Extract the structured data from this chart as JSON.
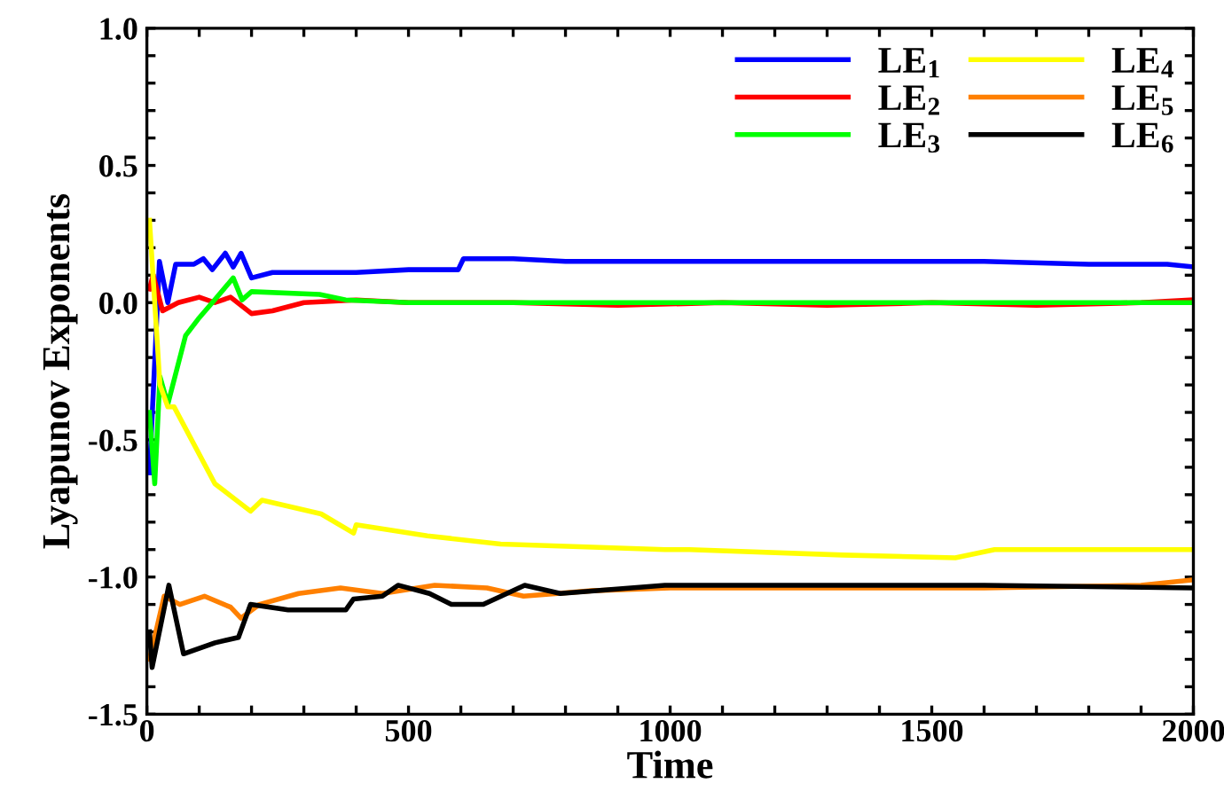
{
  "chart_data": {
    "type": "line",
    "xlabel": "Time",
    "ylabel": "Lyapunov Exponents",
    "xlim": [
      0,
      2000
    ],
    "ylim": [
      -1.5,
      1.0
    ],
    "xticks": [
      0,
      {
        "value": 100,
        "label": null
      },
      {
        "value": 200,
        "label": null
      },
      {
        "value": 300,
        "label": null
      },
      {
        "value": 400,
        "label": null
      },
      500,
      {
        "value": 600,
        "label": null
      },
      {
        "value": 700,
        "label": null
      },
      {
        "value": 800,
        "label": null
      },
      {
        "value": 900,
        "label": null
      },
      1000,
      {
        "value": 1100,
        "label": null
      },
      {
        "value": 1200,
        "label": null
      },
      {
        "value": 1300,
        "label": null
      },
      {
        "value": 1400,
        "label": null
      },
      1500,
      {
        "value": 1600,
        "label": null
      },
      {
        "value": 1700,
        "label": null
      },
      {
        "value": 1800,
        "label": null
      },
      {
        "value": 1900,
        "label": null
      },
      2000
    ],
    "yticks": [
      -1.5,
      {
        "value": -1.4,
        "label": null
      },
      {
        "value": -1.3,
        "label": null
      },
      {
        "value": -1.2,
        "label": null
      },
      {
        "value": -1.1,
        "label": null
      },
      {
        "value": -1.0,
        "label": "-1.0"
      },
      {
        "value": -0.9,
        "label": null
      },
      {
        "value": -0.8,
        "label": null
      },
      {
        "value": -0.7,
        "label": null
      },
      {
        "value": -0.6,
        "label": null
      },
      -0.5,
      {
        "value": -0.4,
        "label": null
      },
      {
        "value": -0.3,
        "label": null
      },
      {
        "value": -0.2,
        "label": null
      },
      {
        "value": -0.1,
        "label": null
      },
      {
        "value": 0.0,
        "label": "0.0"
      },
      {
        "value": 0.1,
        "label": null
      },
      {
        "value": 0.2,
        "label": null
      },
      {
        "value": 0.3,
        "label": null
      },
      {
        "value": 0.4,
        "label": null
      },
      0.5,
      {
        "value": 0.6,
        "label": null
      },
      {
        "value": 0.7,
        "label": null
      },
      {
        "value": 0.8,
        "label": null
      },
      {
        "value": 0.9,
        "label": null
      },
      {
        "value": 1.0,
        "label": "1.0"
      }
    ],
    "legend": "top right",
    "grid": false,
    "marker": "none",
    "line_style": "solid",
    "series": [
      {
        "name": "LE$_{1}$",
        "color": "#0000ff",
        "x": [
          5,
          24,
          40,
          55,
          90,
          108,
          125,
          150,
          165,
          180,
          200,
          240,
          300,
          400,
          500,
          595,
          605,
          700,
          800,
          900,
          1000,
          1200,
          1400,
          1600,
          1800,
          1950,
          2000
        ],
        "values": [
          -0.62,
          0.15,
          0.0,
          0.14,
          0.14,
          0.16,
          0.12,
          0.18,
          0.13,
          0.18,
          0.09,
          0.11,
          0.11,
          0.11,
          0.12,
          0.12,
          0.16,
          0.16,
          0.15,
          0.15,
          0.15,
          0.15,
          0.15,
          0.15,
          0.14,
          0.14,
          0.13
        ]
      },
      {
        "name": "LE$_{2}$",
        "color": "#ff0000",
        "x": [
          5,
          12,
          30,
          60,
          100,
          130,
          160,
          200,
          240,
          300,
          400,
          500,
          700,
          900,
          1100,
          1300,
          1500,
          1700,
          1900,
          2000
        ],
        "values": [
          0.05,
          0.1,
          -0.03,
          0.0,
          0.02,
          0.0,
          0.02,
          -0.04,
          -0.03,
          0.0,
          0.01,
          0.0,
          0.0,
          -0.01,
          0.0,
          -0.01,
          0.0,
          -0.01,
          0.0,
          0.01
        ]
      },
      {
        "name": "LE$_{3}$",
        "color": "#00ff00",
        "x": [
          5,
          15,
          25,
          40,
          74,
          98,
          125,
          165,
          182,
          200,
          330,
          380,
          500,
          800,
          1100,
          1400,
          1700,
          2000
        ],
        "values": [
          -0.4,
          -0.66,
          -0.27,
          -0.37,
          -0.12,
          -0.06,
          0.0,
          0.09,
          0.01,
          0.04,
          0.03,
          0.01,
          0.0,
          0.0,
          0.0,
          0.0,
          0.0,
          0.0
        ]
      },
      {
        "name": "LE$_{4}$",
        "color": "#ffff00",
        "x": [
          5,
          25,
          40,
          52,
          130,
          198,
          220,
          333,
          395,
          400,
          536,
          676,
          990,
          1037,
          1330,
          1545,
          1620,
          2000
        ],
        "values": [
          0.3,
          -0.3,
          -0.38,
          -0.38,
          -0.66,
          -0.76,
          -0.72,
          -0.77,
          -0.84,
          -0.81,
          -0.85,
          -0.88,
          -0.9,
          -0.9,
          -0.92,
          -0.93,
          -0.9,
          -0.9
        ]
      },
      {
        "name": "LE$_{5}$",
        "color": "#ff8000",
        "x": [
          5,
          33,
          63,
          110,
          160,
          180,
          215,
          290,
          370,
          450,
          550,
          650,
          720,
          850,
          1000,
          1300,
          1600,
          1900,
          2000
        ],
        "values": [
          -1.3,
          -1.07,
          -1.1,
          -1.07,
          -1.11,
          -1.15,
          -1.1,
          -1.06,
          -1.04,
          -1.06,
          -1.03,
          -1.04,
          -1.07,
          -1.05,
          -1.04,
          -1.04,
          -1.04,
          -1.03,
          -1.01
        ]
      },
      {
        "name": "LE$_{6}$",
        "color": "#000000",
        "x": [
          5,
          10,
          42,
          70,
          130,
          175,
          198,
          270,
          380,
          395,
          450,
          480,
          540,
          582,
          643,
          677,
          722,
          790,
          990,
          1300,
          1600,
          2000
        ],
        "values": [
          -1.2,
          -1.33,
          -1.03,
          -1.28,
          -1.24,
          -1.22,
          -1.1,
          -1.12,
          -1.12,
          -1.08,
          -1.07,
          -1.03,
          -1.06,
          -1.1,
          -1.1,
          -1.07,
          -1.03,
          -1.06,
          -1.03,
          -1.03,
          -1.03,
          -1.04
        ]
      }
    ]
  }
}
